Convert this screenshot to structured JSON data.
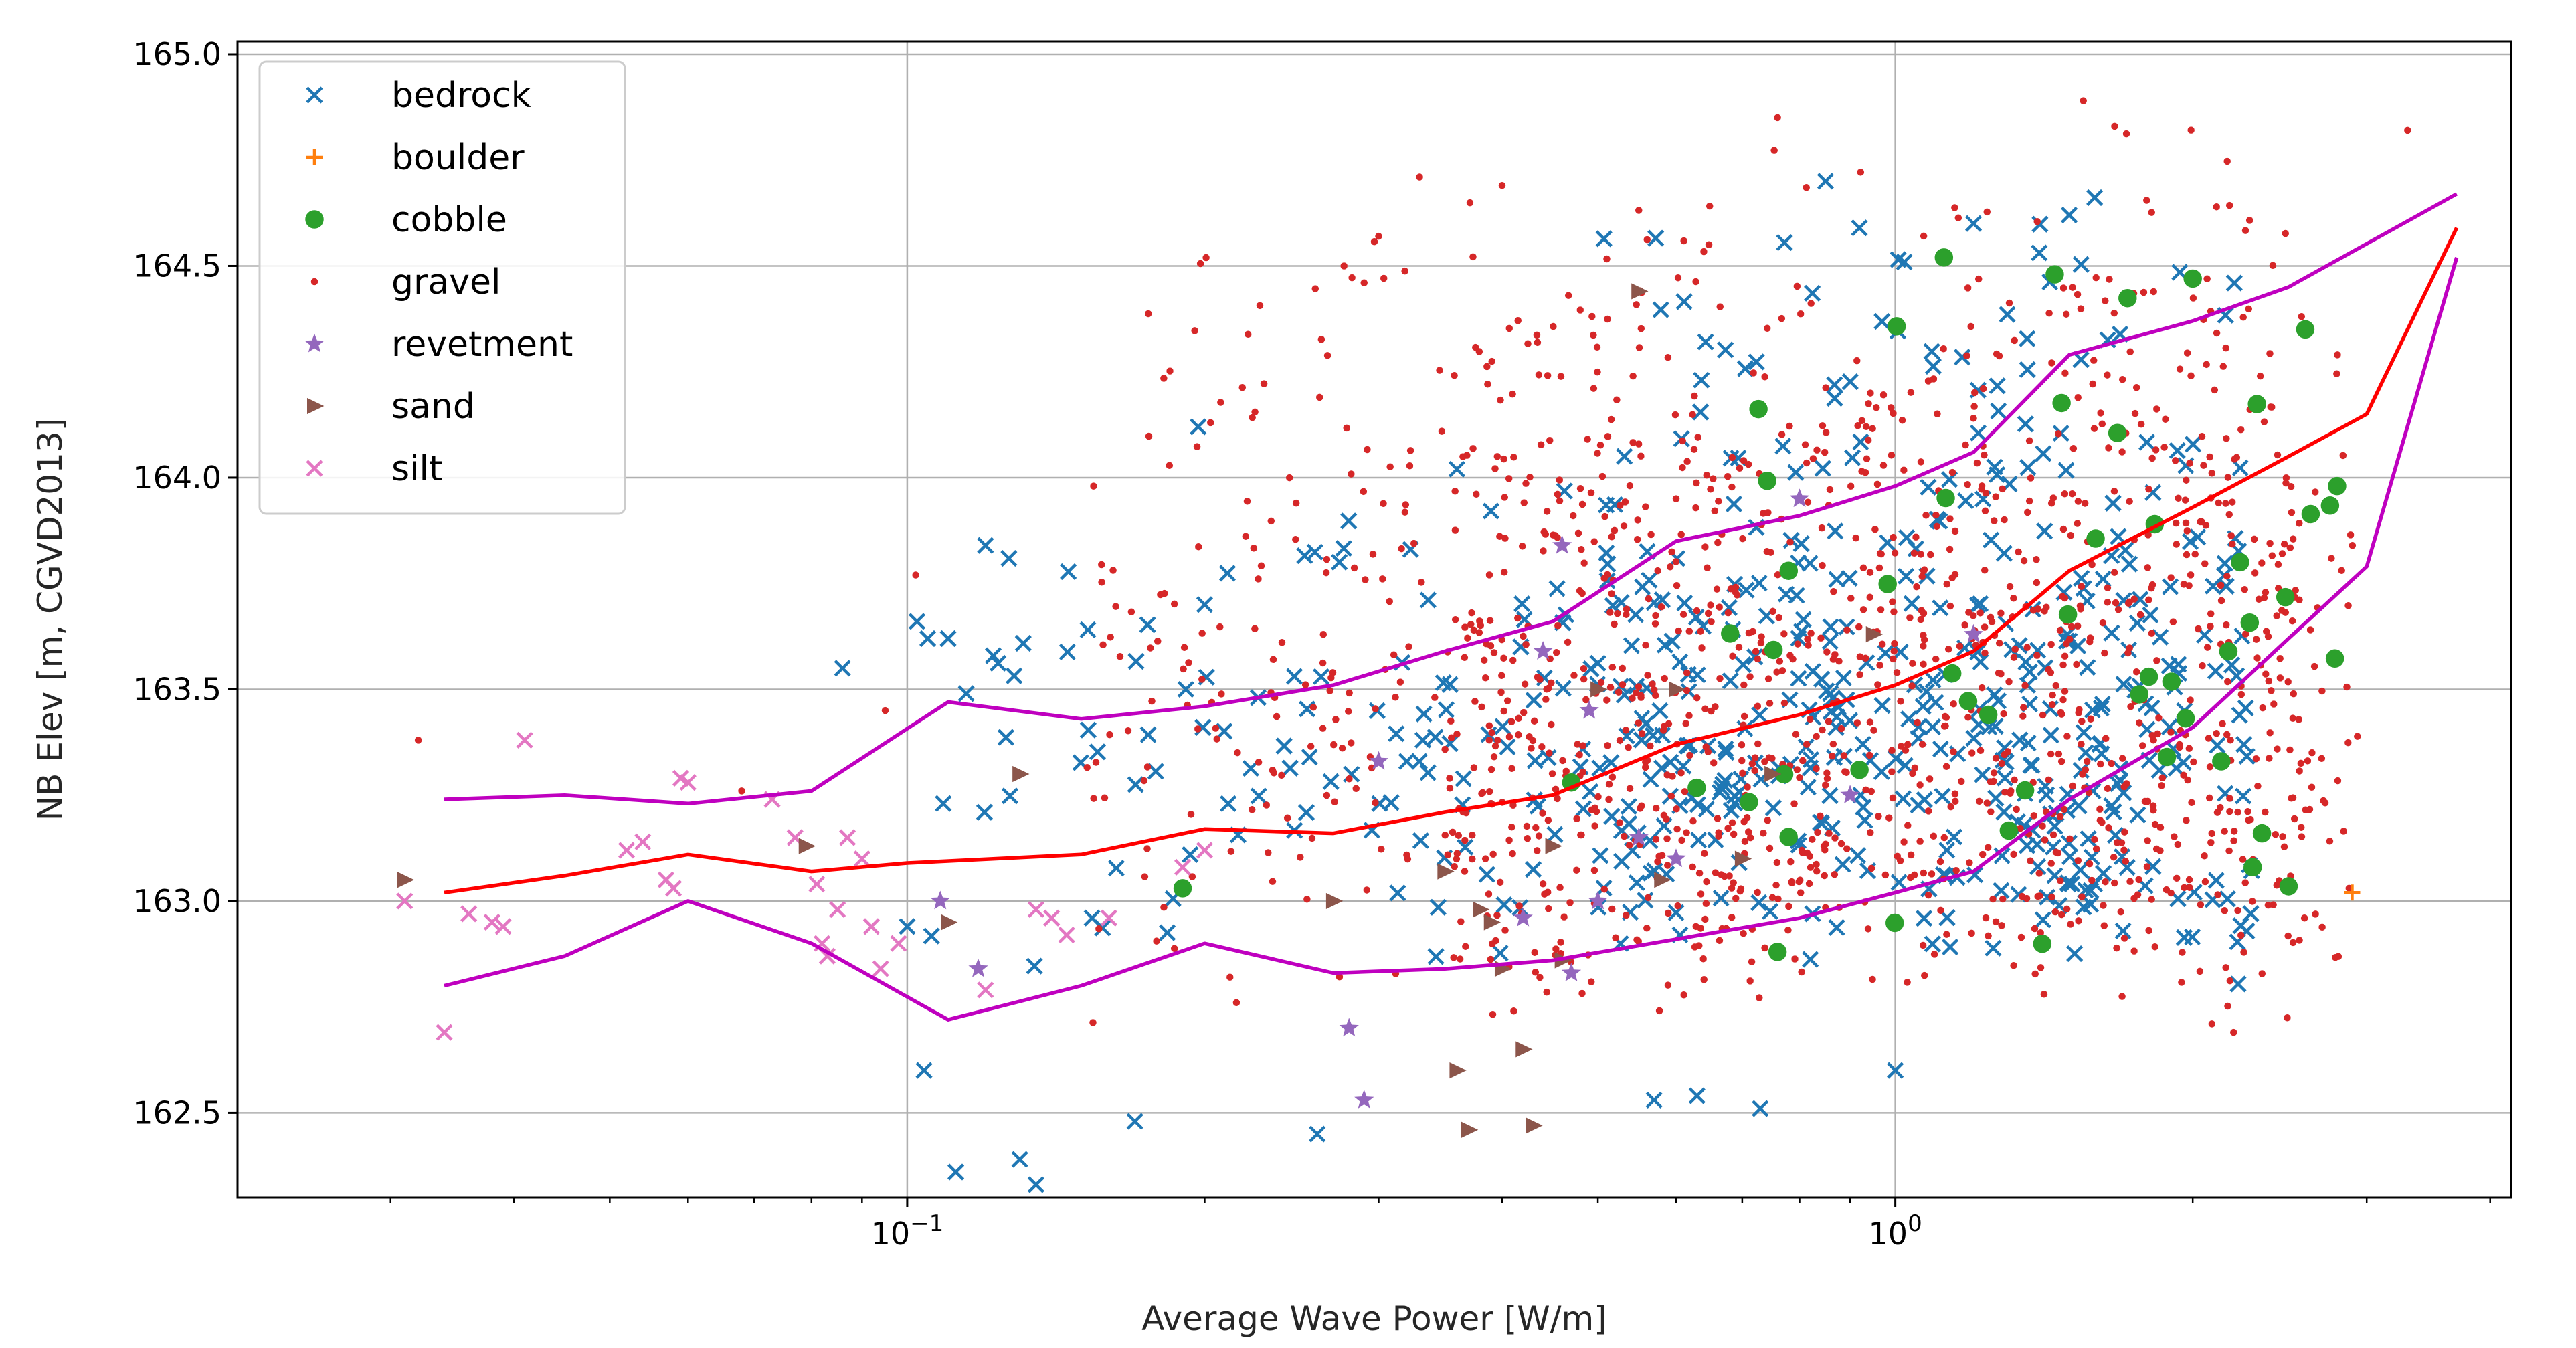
{
  "chart_data": {
    "type": "scatter",
    "title": "",
    "xlabel": "Average Wave Power [W/m]",
    "ylabel": "NB Elev [m, CGVD2013]",
    "xscale": "log",
    "xlim": [
      0.021,
      4.2
    ],
    "ylim": [
      162.3,
      165.03
    ],
    "x_major_ticks": [
      {
        "value": 0.1,
        "base": "10",
        "exp": "−1"
      },
      {
        "value": 1.0,
        "base": "10",
        "exp": "0"
      }
    ],
    "y_ticks": [
      {
        "value": 162.5,
        "label": "162.5"
      },
      {
        "value": 163.0,
        "label": "163.0"
      },
      {
        "value": 163.5,
        "label": "163.5"
      },
      {
        "value": 164.0,
        "label": "164.0"
      },
      {
        "value": 164.5,
        "label": "164.5"
      },
      {
        "value": 165.0,
        "label": "165.0"
      }
    ],
    "grid": true,
    "legend_position": "upper-left",
    "legend": [
      {
        "label": "bedrock",
        "marker": "x",
        "color": "#1f77b4"
      },
      {
        "label": "boulder",
        "marker": "+",
        "color": "#ff7f0e"
      },
      {
        "label": "cobble",
        "marker": "circle",
        "color": "#2ca02c"
      },
      {
        "label": "gravel",
        "marker": "point",
        "color": "#d62728"
      },
      {
        "label": "revetment",
        "marker": "star",
        "color": "#9467bd"
      },
      {
        "label": "sand",
        "marker": "triangle-right",
        "color": "#8c564b"
      },
      {
        "label": "silt",
        "marker": "x",
        "color": "#e377c2"
      }
    ],
    "series": [
      {
        "name": "silt",
        "marker": "x",
        "color": "#e377c2",
        "points": [
          [
            0.031,
            163.0
          ],
          [
            0.034,
            162.69
          ],
          [
            0.036,
            162.97
          ],
          [
            0.038,
            162.95
          ],
          [
            0.039,
            162.94
          ],
          [
            0.041,
            163.38
          ],
          [
            0.052,
            163.12
          ],
          [
            0.054,
            163.14
          ],
          [
            0.057,
            163.05
          ],
          [
            0.058,
            163.03
          ],
          [
            0.059,
            163.29
          ],
          [
            0.073,
            163.24
          ],
          [
            0.077,
            163.15
          ],
          [
            0.081,
            163.04
          ],
          [
            0.082,
            162.9
          ],
          [
            0.083,
            162.87
          ],
          [
            0.087,
            163.15
          ],
          [
            0.09,
            163.1
          ],
          [
            0.092,
            162.94
          ],
          [
            0.094,
            162.84
          ],
          [
            0.12,
            162.79
          ],
          [
            0.135,
            162.98
          ],
          [
            0.14,
            162.96
          ],
          [
            0.145,
            162.92
          ],
          [
            0.19,
            163.08
          ],
          [
            0.2,
            163.12
          ],
          [
            0.06,
            163.28
          ],
          [
            0.085,
            162.98
          ],
          [
            0.098,
            162.9
          ],
          [
            0.16,
            162.96
          ]
        ]
      },
      {
        "name": "sand",
        "marker": "triangle-right",
        "color": "#8c564b",
        "points": [
          [
            0.031,
            163.05
          ],
          [
            0.079,
            163.13
          ],
          [
            0.11,
            162.95
          ],
          [
            0.13,
            163.3
          ],
          [
            0.27,
            163.0
          ],
          [
            0.36,
            162.6
          ],
          [
            0.37,
            162.46
          ],
          [
            0.38,
            162.98
          ],
          [
            0.39,
            162.95
          ],
          [
            0.4,
            162.84
          ],
          [
            0.42,
            162.65
          ],
          [
            0.43,
            162.47
          ],
          [
            0.45,
            163.13
          ],
          [
            0.46,
            162.86
          ],
          [
            0.5,
            163.5
          ],
          [
            0.55,
            164.44
          ],
          [
            0.58,
            163.05
          ],
          [
            0.6,
            163.5
          ],
          [
            0.75,
            163.3
          ],
          [
            0.95,
            163.63
          ],
          [
            0.7,
            163.1
          ],
          [
            0.35,
            163.07
          ]
        ]
      },
      {
        "name": "revetment",
        "marker": "star",
        "color": "#9467bd",
        "points": [
          [
            0.108,
            163.0
          ],
          [
            0.118,
            162.84
          ],
          [
            0.28,
            162.7
          ],
          [
            0.29,
            162.53
          ],
          [
            0.3,
            163.33
          ],
          [
            0.42,
            162.96
          ],
          [
            0.44,
            163.59
          ],
          [
            0.46,
            163.84
          ],
          [
            0.47,
            162.83
          ],
          [
            0.49,
            163.45
          ],
          [
            0.55,
            163.15
          ],
          [
            0.6,
            163.1
          ],
          [
            0.8,
            163.95
          ],
          [
            1.2,
            163.63
          ],
          [
            0.9,
            163.25
          ],
          [
            0.5,
            163.0
          ]
        ]
      },
      {
        "name": "boulder",
        "marker": "+",
        "color": "#ff7f0e",
        "points": [
          [
            2.9,
            163.02
          ]
        ]
      }
    ],
    "generated_series": [
      {
        "name": "bedrock",
        "marker": "x",
        "color": "#1f77b4",
        "count": 560,
        "seed": 11,
        "clusters": [
          {
            "w": 0.55,
            "xmin": 0.5,
            "xmax": 2.3,
            "ymin": 162.8,
            "ymax": 164.7,
            "ymode": 163.1
          },
          {
            "w": 0.45,
            "xmin": 0.1,
            "xmax": 2.3,
            "ymin": 162.8,
            "ymax": 164.0,
            "ymode": 163.4
          }
        ],
        "fixed": [
          [
            0.197,
            164.12
          ],
          [
            0.12,
            163.84
          ],
          [
            0.11,
            163.62
          ],
          [
            0.086,
            163.55
          ],
          [
            0.104,
            162.6
          ],
          [
            0.112,
            162.36
          ],
          [
            0.13,
            162.39
          ],
          [
            0.135,
            162.33
          ],
          [
            0.17,
            162.48
          ],
          [
            0.26,
            162.45
          ],
          [
            0.57,
            162.53
          ],
          [
            0.63,
            162.54
          ],
          [
            0.73,
            162.51
          ],
          [
            1.0,
            162.6
          ],
          [
            0.85,
            164.7
          ],
          [
            1.2,
            164.6
          ],
          [
            1.5,
            164.62
          ],
          [
            0.36,
            164.02
          ],
          [
            0.2,
            163.7
          ],
          [
            0.1,
            162.94
          ]
        ]
      },
      {
        "name": "gravel",
        "marker": "point",
        "color": "#d62728",
        "count": 1500,
        "seed": 29,
        "clusters": [
          {
            "w": 0.6,
            "xmin": 0.35,
            "xmax": 2.6,
            "ymin": 162.7,
            "ymax": 164.9,
            "ymode": 163.1
          },
          {
            "w": 0.4,
            "xmin": 0.15,
            "xmax": 3.0,
            "ymin": 162.7,
            "ymax": 164.6,
            "ymode": 163.4
          }
        ],
        "fixed": [
          [
            0.032,
            163.38
          ],
          [
            0.102,
            163.77
          ],
          [
            0.33,
            164.71
          ],
          [
            0.4,
            164.69
          ],
          [
            0.3,
            164.57
          ],
          [
            0.76,
            164.85
          ],
          [
            1.55,
            164.89
          ],
          [
            3.3,
            164.82
          ],
          [
            0.29,
            164.46
          ],
          [
            2.2,
            162.69
          ],
          [
            0.6,
            163.95
          ],
          [
            0.068,
            163.26
          ],
          [
            0.095,
            163.45
          ]
        ]
      },
      {
        "name": "cobble",
        "marker": "circle",
        "color": "#2ca02c",
        "count": 40,
        "seed": 47,
        "clusters": [
          {
            "w": 1.0,
            "xmin": 0.6,
            "xmax": 2.9,
            "ymin": 162.87,
            "ymax": 164.52,
            "ymode": 163.5
          }
        ],
        "fixed": [
          [
            0.19,
            163.03
          ],
          [
            0.47,
            163.28
          ],
          [
            1.12,
            164.52
          ],
          [
            1.45,
            164.48
          ],
          [
            2.0,
            164.47
          ],
          [
            2.6,
            164.35
          ],
          [
            2.8,
            163.98
          ],
          [
            0.76,
            162.88
          ],
          [
            2.35,
            163.16
          ],
          [
            2.3,
            163.08
          ],
          [
            0.78,
            163.78
          ]
        ]
      }
    ],
    "lines": [
      {
        "name": "median",
        "color": "#ff0000",
        "points": [
          [
            0.034,
            163.02
          ],
          [
            0.045,
            163.06
          ],
          [
            0.06,
            163.11
          ],
          [
            0.08,
            163.07
          ],
          [
            0.1,
            163.09
          ],
          [
            0.15,
            163.11
          ],
          [
            0.2,
            163.17
          ],
          [
            0.27,
            163.16
          ],
          [
            0.35,
            163.21
          ],
          [
            0.45,
            163.25
          ],
          [
            0.6,
            163.37
          ],
          [
            0.8,
            163.44
          ],
          [
            1.0,
            163.51
          ],
          [
            1.2,
            163.59
          ],
          [
            1.5,
            163.78
          ],
          [
            2.0,
            163.93
          ],
          [
            2.5,
            164.05
          ],
          [
            3.0,
            164.15
          ],
          [
            3.7,
            164.59
          ]
        ]
      },
      {
        "name": "upper",
        "color": "#bf00bf",
        "points": [
          [
            0.034,
            163.24
          ],
          [
            0.045,
            163.25
          ],
          [
            0.06,
            163.23
          ],
          [
            0.08,
            163.26
          ],
          [
            0.11,
            163.47
          ],
          [
            0.15,
            163.43
          ],
          [
            0.2,
            163.46
          ],
          [
            0.27,
            163.51
          ],
          [
            0.35,
            163.59
          ],
          [
            0.45,
            163.66
          ],
          [
            0.6,
            163.85
          ],
          [
            0.8,
            163.91
          ],
          [
            1.0,
            163.98
          ],
          [
            1.2,
            164.06
          ],
          [
            1.5,
            164.29
          ],
          [
            2.0,
            164.37
          ],
          [
            2.5,
            164.45
          ],
          [
            3.7,
            164.67
          ]
        ]
      },
      {
        "name": "lower",
        "color": "#bf00bf",
        "points": [
          [
            0.034,
            162.8
          ],
          [
            0.045,
            162.87
          ],
          [
            0.06,
            163.0
          ],
          [
            0.08,
            162.9
          ],
          [
            0.11,
            162.72
          ],
          [
            0.15,
            162.8
          ],
          [
            0.2,
            162.9
          ],
          [
            0.27,
            162.83
          ],
          [
            0.35,
            162.84
          ],
          [
            0.45,
            162.86
          ],
          [
            0.6,
            162.91
          ],
          [
            0.8,
            162.96
          ],
          [
            1.0,
            163.02
          ],
          [
            1.2,
            163.07
          ],
          [
            1.5,
            163.24
          ],
          [
            2.0,
            163.41
          ],
          [
            2.5,
            163.62
          ],
          [
            3.0,
            163.79
          ],
          [
            3.7,
            164.52
          ]
        ]
      }
    ]
  }
}
